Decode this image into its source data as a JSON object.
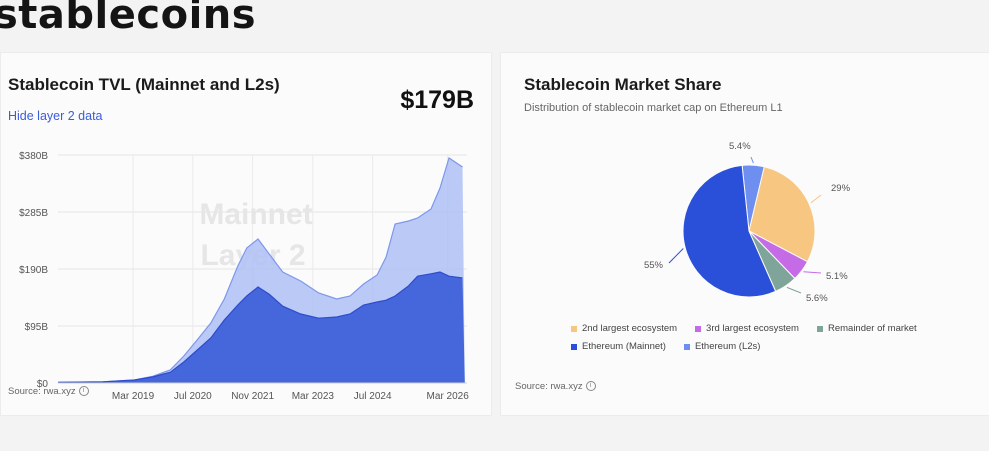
{
  "page": {
    "title": "stablecoins"
  },
  "left_card": {
    "title": "Stablecoin TVL (Mainnet and L2s)",
    "toggle_label": "Hide layer 2 data",
    "big_value": "$179B",
    "watermark": [
      "Mainnet",
      "Layer 2"
    ],
    "source": "Source: rwa.xyz"
  },
  "right_card": {
    "title": "Stablecoin Market Share",
    "subtitle": "Distribution of stablecoin market cap on Ethereum L1",
    "source": "Source: rwa.xyz"
  },
  "chart_data": [
    {
      "type": "area",
      "title": "Stablecoin TVL (Mainnet and L2s)",
      "ylim": [
        0,
        380
      ],
      "yticks": [
        0,
        95,
        190,
        285,
        380
      ],
      "ytick_labels": [
        "$0",
        "$95B",
        "$190B",
        "$285B",
        "$380B"
      ],
      "xlim": [
        2017.5,
        2026.6
      ],
      "xticks": [
        2019.17,
        2020.5,
        2021.83,
        2023.17,
        2024.5,
        2026.17
      ],
      "xtick_labels": [
        "Mar 2019",
        "Jul 2020",
        "Nov 2021",
        "Mar 2023",
        "Jul 2024",
        "Mar 2026"
      ],
      "x": [
        2017.5,
        2018.5,
        2019.2,
        2019.6,
        2020.0,
        2020.3,
        2020.6,
        2020.9,
        2021.2,
        2021.5,
        2021.7,
        2021.95,
        2022.2,
        2022.5,
        2022.9,
        2023.3,
        2023.7,
        2024.0,
        2024.3,
        2024.6,
        2024.8,
        2025.0,
        2025.3,
        2025.5,
        2025.8,
        2026.0,
        2026.2,
        2026.5,
        2026.55
      ],
      "series": [
        {
          "name": "Mainnet",
          "color": "#3a5bd9",
          "values": [
            1,
            2,
            5,
            10,
            18,
            35,
            55,
            75,
            105,
            130,
            145,
            160,
            148,
            128,
            115,
            108,
            110,
            115,
            130,
            135,
            138,
            145,
            162,
            178,
            182,
            185,
            178,
            175,
            0
          ]
        },
        {
          "name": "Layer 2",
          "color": "#aebff4",
          "values": [
            1,
            2,
            5,
            11,
            22,
            45,
            72,
            100,
            140,
            195,
            225,
            240,
            215,
            185,
            170,
            150,
            140,
            145,
            165,
            180,
            210,
            265,
            270,
            275,
            290,
            325,
            375,
            360,
            0
          ]
        }
      ],
      "grid": true
    },
    {
      "type": "pie",
      "title": "Stablecoin Market Share",
      "subtitle": "Distribution of stablecoin market cap on Ethereum L1",
      "legend": "bottom",
      "slices": [
        {
          "name": "Ethereum (L2s)",
          "value": 5.4,
          "label": "5.4%",
          "color": "#6f8ff0"
        },
        {
          "name": "2nd largest ecosystem",
          "value": 29,
          "label": "29%",
          "color": "#f7c680"
        },
        {
          "name": "3rd largest ecosystem",
          "value": 5.1,
          "label": "5.1%",
          "color": "#c56be6"
        },
        {
          "name": "Remainder of market",
          "value": 5.6,
          "label": "5.6%",
          "color": "#7fa59b"
        },
        {
          "name": "Ethereum (Mainnet)",
          "value": 55,
          "label": "55%",
          "color": "#2a4fd9"
        }
      ],
      "legend_rows": [
        [
          "2nd largest ecosystem",
          "3rd largest ecosystem",
          "Remainder of market"
        ],
        [
          "Ethereum (Mainnet)",
          "Ethereum (L2s)"
        ]
      ]
    }
  ]
}
